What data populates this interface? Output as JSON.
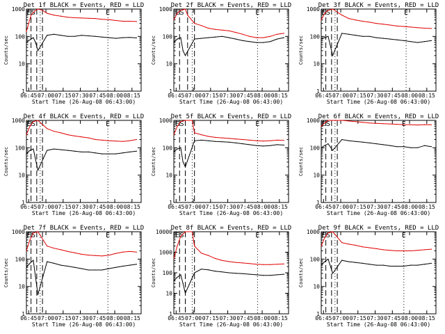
{
  "colors": {
    "events": "#000000",
    "lld": "#e00000",
    "axes": "#000000",
    "background": "#ffffff"
  },
  "panels_text": {
    "ylabel": "Counts/sec",
    "xlabel": "Start Time (26-Aug-08 06:43:00)",
    "x_ticks": [
      "06:45",
      "07:00",
      "07:15",
      "07:30",
      "07:45",
      "08:00",
      "08:15"
    ],
    "y_ticks": [
      "1",
      "10",
      "100",
      "1000"
    ],
    "y_ticks_big": [
      "1",
      "10",
      "100",
      "1000",
      "10000"
    ],
    "marker_labels": [
      "E",
      "S",
      "E"
    ]
  },
  "chart_data": [
    {
      "type": "line",
      "title": "Det 1f BLACK = Events, RED = LLD",
      "ylim": [
        1,
        1000
      ],
      "log_y": true,
      "xlim_minutes": [
        0,
        100
      ],
      "series": [
        {
          "name": "Events",
          "color": "#000000",
          "x": [
            0,
            2,
            4,
            5,
            6,
            8,
            10,
            18,
            24,
            30,
            36,
            42,
            48,
            54,
            60,
            66,
            72,
            78,
            84,
            90,
            96
          ],
          "values": [
            60,
            70,
            80,
            85,
            90,
            60,
            30,
            110,
            120,
            110,
            100,
            100,
            110,
            105,
            100,
            95,
            90,
            85,
            90,
            92,
            88
          ]
        },
        {
          "name": "LLD",
          "color": "#e00000",
          "x": [
            0,
            2,
            4,
            8,
            10,
            14,
            18,
            24,
            30,
            36,
            42,
            48,
            54,
            60,
            66,
            72,
            78,
            84,
            90,
            96
          ],
          "values": [
            150,
            300,
            600,
            900,
            1000,
            900,
            700,
            600,
            550,
            500,
            480,
            470,
            460,
            450,
            420,
            410,
            380,
            360,
            360,
            350
          ]
        }
      ],
      "markers": {
        "dashed": [
          4,
          9,
          14
        ],
        "dotted": [
          12,
          71
        ]
      }
    },
    {
      "type": "line",
      "title": "Det 2f BLACK = Events, RED = LLD",
      "ylim": [
        1,
        1000
      ],
      "log_y": true,
      "xlim_minutes": [
        0,
        100
      ],
      "series": [
        {
          "name": "Events",
          "color": "#000000",
          "x": [
            0,
            3,
            6,
            8,
            10,
            18,
            24,
            30,
            36,
            42,
            48,
            54,
            60,
            66,
            72,
            78,
            84,
            90,
            96
          ],
          "values": [
            60,
            80,
            90,
            30,
            20,
            80,
            85,
            90,
            95,
            100,
            90,
            80,
            70,
            65,
            60,
            60,
            65,
            80,
            90
          ]
        },
        {
          "name": "LLD",
          "color": "#e00000",
          "x": [
            0,
            3,
            6,
            10,
            12,
            18,
            24,
            30,
            36,
            42,
            48,
            54,
            60,
            66,
            72,
            78,
            84,
            90,
            96
          ],
          "values": [
            400,
            700,
            900,
            1000,
            600,
            300,
            250,
            200,
            180,
            170,
            160,
            140,
            120,
            100,
            90,
            90,
            100,
            120,
            130
          ]
        }
      ],
      "markers": {
        "dashed": [
          5,
          12,
          18
        ],
        "dotted": [
          16,
          73
        ]
      }
    },
    {
      "type": "line",
      "title": "Det 3f BLACK = Events, RED = LLD",
      "ylim": [
        1,
        1000
      ],
      "log_y": true,
      "xlim_minutes": [
        0,
        100
      ],
      "series": [
        {
          "name": "Events",
          "color": "#000000",
          "x": [
            0,
            3,
            6,
            10,
            18,
            24,
            30,
            36,
            42,
            48,
            54,
            60,
            66,
            72,
            78,
            84,
            90,
            96
          ],
          "values": [
            80,
            90,
            100,
            20,
            130,
            120,
            110,
            100,
            100,
            90,
            85,
            80,
            75,
            70,
            65,
            60,
            65,
            70
          ]
        },
        {
          "name": "LLD",
          "color": "#e00000",
          "x": [
            0,
            3,
            6,
            10,
            18,
            24,
            30,
            36,
            42,
            48,
            54,
            60,
            66,
            72,
            78,
            84,
            90,
            96
          ],
          "values": [
            400,
            700,
            900,
            1000,
            600,
            450,
            400,
            360,
            330,
            300,
            280,
            260,
            240,
            230,
            220,
            210,
            200,
            195
          ]
        }
      ],
      "markers": {
        "dashed": [
          4,
          9,
          14
        ],
        "dotted": [
          12,
          74
        ]
      }
    },
    {
      "type": "line",
      "title": "Det 4f BLACK = Events, RED = LLD",
      "ylim": [
        1,
        1000
      ],
      "log_y": true,
      "xlim_minutes": [
        0,
        100
      ],
      "series": [
        {
          "name": "Events",
          "color": "#000000",
          "x": [
            0,
            3,
            6,
            10,
            18,
            24,
            30,
            36,
            42,
            48,
            54,
            60,
            66,
            72,
            78,
            84,
            90,
            96
          ],
          "values": [
            60,
            80,
            90,
            15,
            80,
            90,
            85,
            80,
            75,
            70,
            70,
            65,
            60,
            60,
            60,
            65,
            70,
            75
          ]
        },
        {
          "name": "LLD",
          "color": "#e00000",
          "x": [
            0,
            3,
            6,
            10,
            18,
            24,
            30,
            36,
            42,
            48,
            54,
            60,
            66,
            72,
            78,
            84,
            90,
            96
          ],
          "values": [
            300,
            600,
            900,
            1000,
            500,
            400,
            350,
            300,
            270,
            250,
            230,
            200,
            190,
            180,
            175,
            170,
            180,
            200
          ]
        }
      ],
      "markers": {
        "dashed": [
          4,
          9,
          14
        ],
        "dotted": [
          12,
          71
        ]
      }
    },
    {
      "type": "line",
      "title": "Det 5f BLACK = Events, RED = LLD",
      "ylim": [
        1,
        1000
      ],
      "log_y": true,
      "xlim_minutes": [
        0,
        100
      ],
      "series": [
        {
          "name": "Events",
          "color": "#000000",
          "x": [
            0,
            3,
            6,
            8,
            10,
            18,
            24,
            30,
            36,
            42,
            48,
            54,
            60,
            66,
            72,
            78,
            84,
            90,
            96
          ],
          "values": [
            70,
            90,
            100,
            30,
            20,
            180,
            190,
            180,
            170,
            165,
            160,
            150,
            140,
            130,
            120,
            115,
            120,
            130,
            125
          ]
        },
        {
          "name": "LLD",
          "color": "#e00000",
          "x": [
            0,
            3,
            6,
            10,
            16,
            18,
            24,
            30,
            36,
            42,
            48,
            54,
            60,
            66,
            72,
            78,
            84,
            90,
            96
          ],
          "values": [
            300,
            600,
            900,
            1000,
            1000,
            350,
            300,
            260,
            240,
            230,
            220,
            210,
            200,
            190,
            180,
            175,
            180,
            190,
            185
          ]
        }
      ],
      "markers": {
        "dashed": [
          5,
          10,
          18
        ],
        "dotted": [
          16,
          73
        ]
      }
    },
    {
      "type": "line",
      "title": "Det 6f BLACK = Events, RED = LLD",
      "ylim": [
        1,
        1000
      ],
      "log_y": true,
      "xlim_minutes": [
        0,
        100
      ],
      "series": [
        {
          "name": "Events",
          "color": "#000000",
          "x": [
            0,
            3,
            6,
            10,
            18,
            24,
            30,
            36,
            42,
            48,
            54,
            60,
            66,
            72,
            78,
            84,
            90,
            96
          ],
          "values": [
            100,
            120,
            140,
            80,
            200,
            180,
            170,
            160,
            150,
            140,
            130,
            120,
            110,
            110,
            100,
            100,
            120,
            110
          ]
        },
        {
          "name": "LLD",
          "color": "#e00000",
          "x": [
            0,
            3,
            6,
            10,
            18,
            24,
            30,
            36,
            42,
            48,
            54,
            60,
            66,
            72,
            78,
            84,
            90,
            96
          ],
          "values": [
            600,
            800,
            1000,
            1000,
            1000,
            950,
            900,
            850,
            800,
            780,
            760,
            740,
            720,
            700,
            690,
            680,
            700,
            690
          ]
        }
      ],
      "markers": {
        "dashed": [
          4,
          9,
          14
        ],
        "dotted": [
          12,
          72
        ]
      }
    },
    {
      "type": "line",
      "title": "Det 7f BLACK = Events, RED = LLD",
      "ylim": [
        1,
        1000
      ],
      "log_y": true,
      "xlim_minutes": [
        0,
        100
      ],
      "series": [
        {
          "name": "Events",
          "color": "#000000",
          "x": [
            0,
            3,
            6,
            10,
            18,
            24,
            30,
            36,
            42,
            48,
            54,
            60,
            66,
            72,
            78,
            84,
            90,
            96
          ],
          "values": [
            50,
            70,
            90,
            5,
            80,
            70,
            60,
            55,
            50,
            45,
            40,
            40,
            40,
            45,
            50,
            55,
            60,
            65
          ]
        },
        {
          "name": "LLD",
          "color": "#e00000",
          "x": [
            0,
            3,
            6,
            10,
            18,
            24,
            30,
            36,
            42,
            48,
            54,
            60,
            66,
            72,
            78,
            84,
            90,
            96
          ],
          "values": [
            200,
            500,
            900,
            1000,
            300,
            250,
            220,
            190,
            170,
            150,
            140,
            135,
            130,
            140,
            160,
            180,
            190,
            180
          ]
        }
      ],
      "markers": {
        "dashed": [
          4,
          9,
          14
        ],
        "dotted": [
          12,
          71
        ]
      }
    },
    {
      "type": "line",
      "title": "Det 8f BLACK = Events, RED = LLD",
      "ylim": [
        1,
        10000
      ],
      "log_y": true,
      "xlim_minutes": [
        0,
        100
      ],
      "series": [
        {
          "name": "Events",
          "color": "#000000",
          "x": [
            0,
            3,
            6,
            8,
            10,
            18,
            24,
            30,
            36,
            42,
            48,
            54,
            60,
            66,
            72,
            78,
            84,
            90,
            96
          ],
          "values": [
            40,
            60,
            80,
            30,
            10,
            100,
            150,
            140,
            120,
            110,
            100,
            95,
            90,
            85,
            80,
            75,
            75,
            80,
            85
          ]
        },
        {
          "name": "LLD",
          "color": "#e00000",
          "x": [
            0,
            3,
            6,
            10,
            16,
            18,
            24,
            30,
            36,
            42,
            48,
            54,
            60,
            66,
            72,
            78,
            84,
            90,
            96
          ],
          "values": [
            500,
            2000,
            6000,
            10000,
            10000,
            2000,
            900,
            700,
            500,
            400,
            350,
            320,
            300,
            280,
            260,
            250,
            250,
            260,
            270
          ]
        }
      ],
      "markers": {
        "dashed": [
          5,
          10,
          18
        ],
        "dotted": [
          16,
          73
        ]
      }
    },
    {
      "type": "line",
      "title": "Det 9f BLACK = Events, RED = LLD",
      "ylim": [
        1,
        1000
      ],
      "log_y": true,
      "xlim_minutes": [
        0,
        100
      ],
      "series": [
        {
          "name": "Events",
          "color": "#000000",
          "x": [
            0,
            3,
            6,
            10,
            18,
            24,
            30,
            36,
            42,
            48,
            54,
            60,
            66,
            72,
            78,
            84,
            90,
            96
          ],
          "values": [
            60,
            80,
            100,
            30,
            90,
            80,
            75,
            70,
            65,
            60,
            60,
            55,
            55,
            55,
            60,
            60,
            65,
            70
          ]
        },
        {
          "name": "LLD",
          "color": "#e00000",
          "x": [
            0,
            3,
            6,
            10,
            18,
            24,
            30,
            36,
            42,
            48,
            54,
            60,
            66,
            72,
            78,
            84,
            90,
            96
          ],
          "values": [
            300,
            600,
            900,
            1000,
            400,
            350,
            320,
            280,
            260,
            240,
            220,
            210,
            200,
            200,
            200,
            210,
            220,
            230
          ]
        }
      ],
      "markers": {
        "dashed": [
          4,
          9,
          14
        ],
        "dotted": [
          12,
          72
        ]
      }
    }
  ]
}
